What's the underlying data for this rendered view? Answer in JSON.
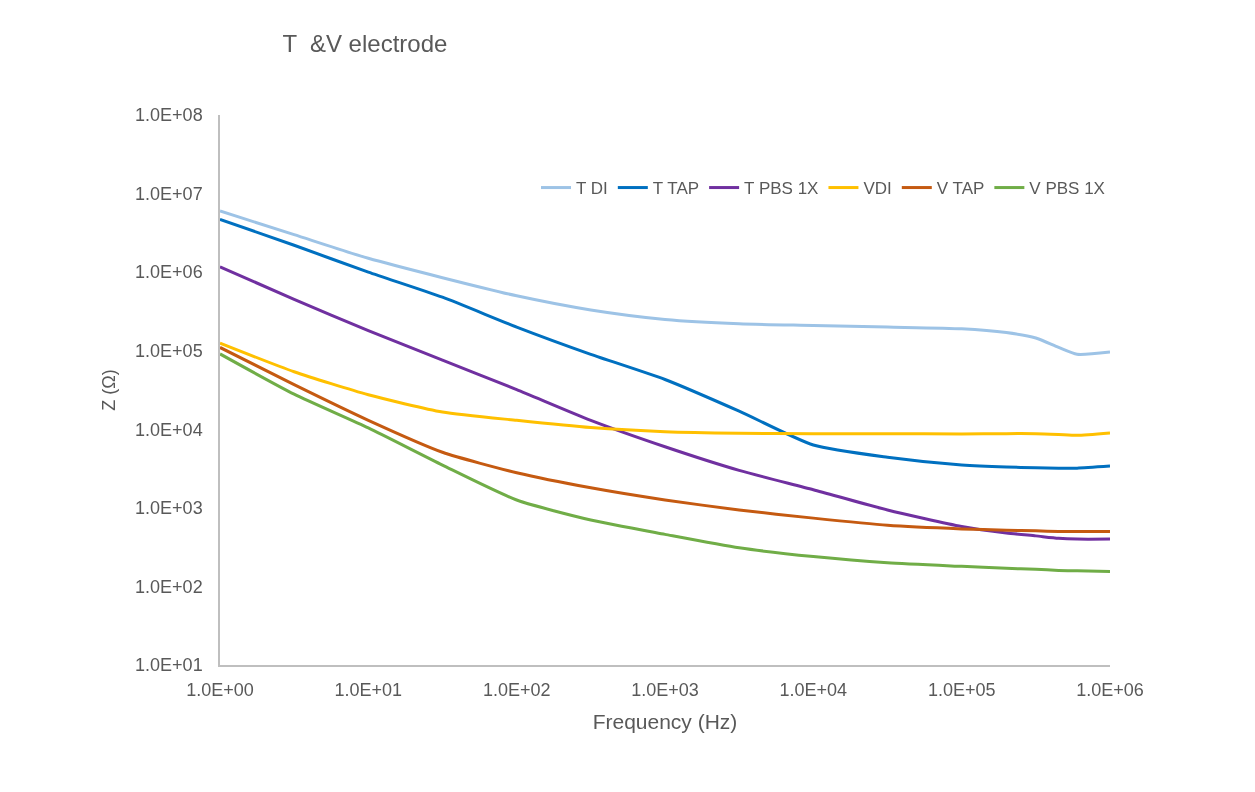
{
  "chart_data": {
    "type": "line",
    "title": "T  &V electrode",
    "xlabel": "Frequency (Hz)",
    "ylabel": "Z (Ω)",
    "log": "xy",
    "grid": false,
    "legend": "top right",
    "marker": "none",
    "line_style": "solid",
    "x": [
      1,
      3.16,
      10,
      31.6,
      100,
      316,
      1000,
      3162,
      10000,
      31620,
      100000,
      200000,
      316200,
      450000,
      600000,
      1000000
    ],
    "xlim": [
      1,
      1000000
    ],
    "ylim": [
      10,
      100000000
    ],
    "xticks": [
      {
        "value": 1,
        "label": "1.0E+00"
      },
      {
        "value": 10,
        "label": "1.0E+01"
      },
      {
        "value": 100,
        "label": "1.0E+02"
      },
      {
        "value": 1000,
        "label": "1.0E+03"
      },
      {
        "value": 10000,
        "label": "1.0E+04"
      },
      {
        "value": 100000,
        "label": "1.0E+05"
      },
      {
        "value": 1000000,
        "label": "1.0E+06"
      }
    ],
    "yticks": [
      {
        "value": 10,
        "label": "1.0E+01"
      },
      {
        "value": 100,
        "label": "1.0E+02"
      },
      {
        "value": 1000,
        "label": "1.0E+03"
      },
      {
        "value": 10000,
        "label": "1.0E+04"
      },
      {
        "value": 100000,
        "label": "1.0E+05"
      },
      {
        "value": 1000000,
        "label": "1.0E+06"
      },
      {
        "value": 10000000,
        "label": "1.0E+07"
      },
      {
        "value": 100000000,
        "label": "1.0E+08"
      }
    ],
    "series": [
      {
        "name": "T DI",
        "color": "#9dc3e6",
        "values": [
          6000000,
          3000000,
          1500000,
          850000,
          500000,
          330000,
          250000,
          220000,
          210000,
          200000,
          190000,
          170000,
          145000,
          110000,
          90000,
          96000
        ]
      },
      {
        "name": "T TAP",
        "color": "#0070c0",
        "values": [
          4700000,
          2200000,
          1000000,
          480000,
          200000,
          90000,
          43000,
          17000,
          6300,
          4400,
          3500,
          3300,
          3250,
          3200,
          3200,
          3400
        ]
      },
      {
        "name": "T PBS 1X",
        "color": "#7030a0",
        "values": [
          1170000,
          450000,
          180000,
          76000,
          32000,
          13000,
          6000,
          3000,
          1700,
          940,
          580,
          480,
          440,
          410,
          400,
          400
        ]
      },
      {
        "name": "VDI",
        "color": "#ffc000",
        "values": [
          125000,
          54000,
          27500,
          16600,
          13000,
          10500,
          9300,
          8900,
          8800,
          8800,
          8700,
          8800,
          8800,
          8600,
          8400,
          9000
        ]
      },
      {
        "name": "V TAP",
        "color": "#c55a11",
        "values": [
          110000,
          37000,
          13000,
          5100,
          2800,
          1800,
          1260,
          940,
          740,
          600,
          540,
          520,
          510,
          500,
          500,
          500
        ]
      },
      {
        "name": "V PBS 1X",
        "color": "#70ad47",
        "values": [
          91000,
          28000,
          10400,
          3500,
          1260,
          700,
          460,
          310,
          240,
          200,
          180,
          170,
          165,
          160,
          158,
          155
        ]
      }
    ]
  }
}
